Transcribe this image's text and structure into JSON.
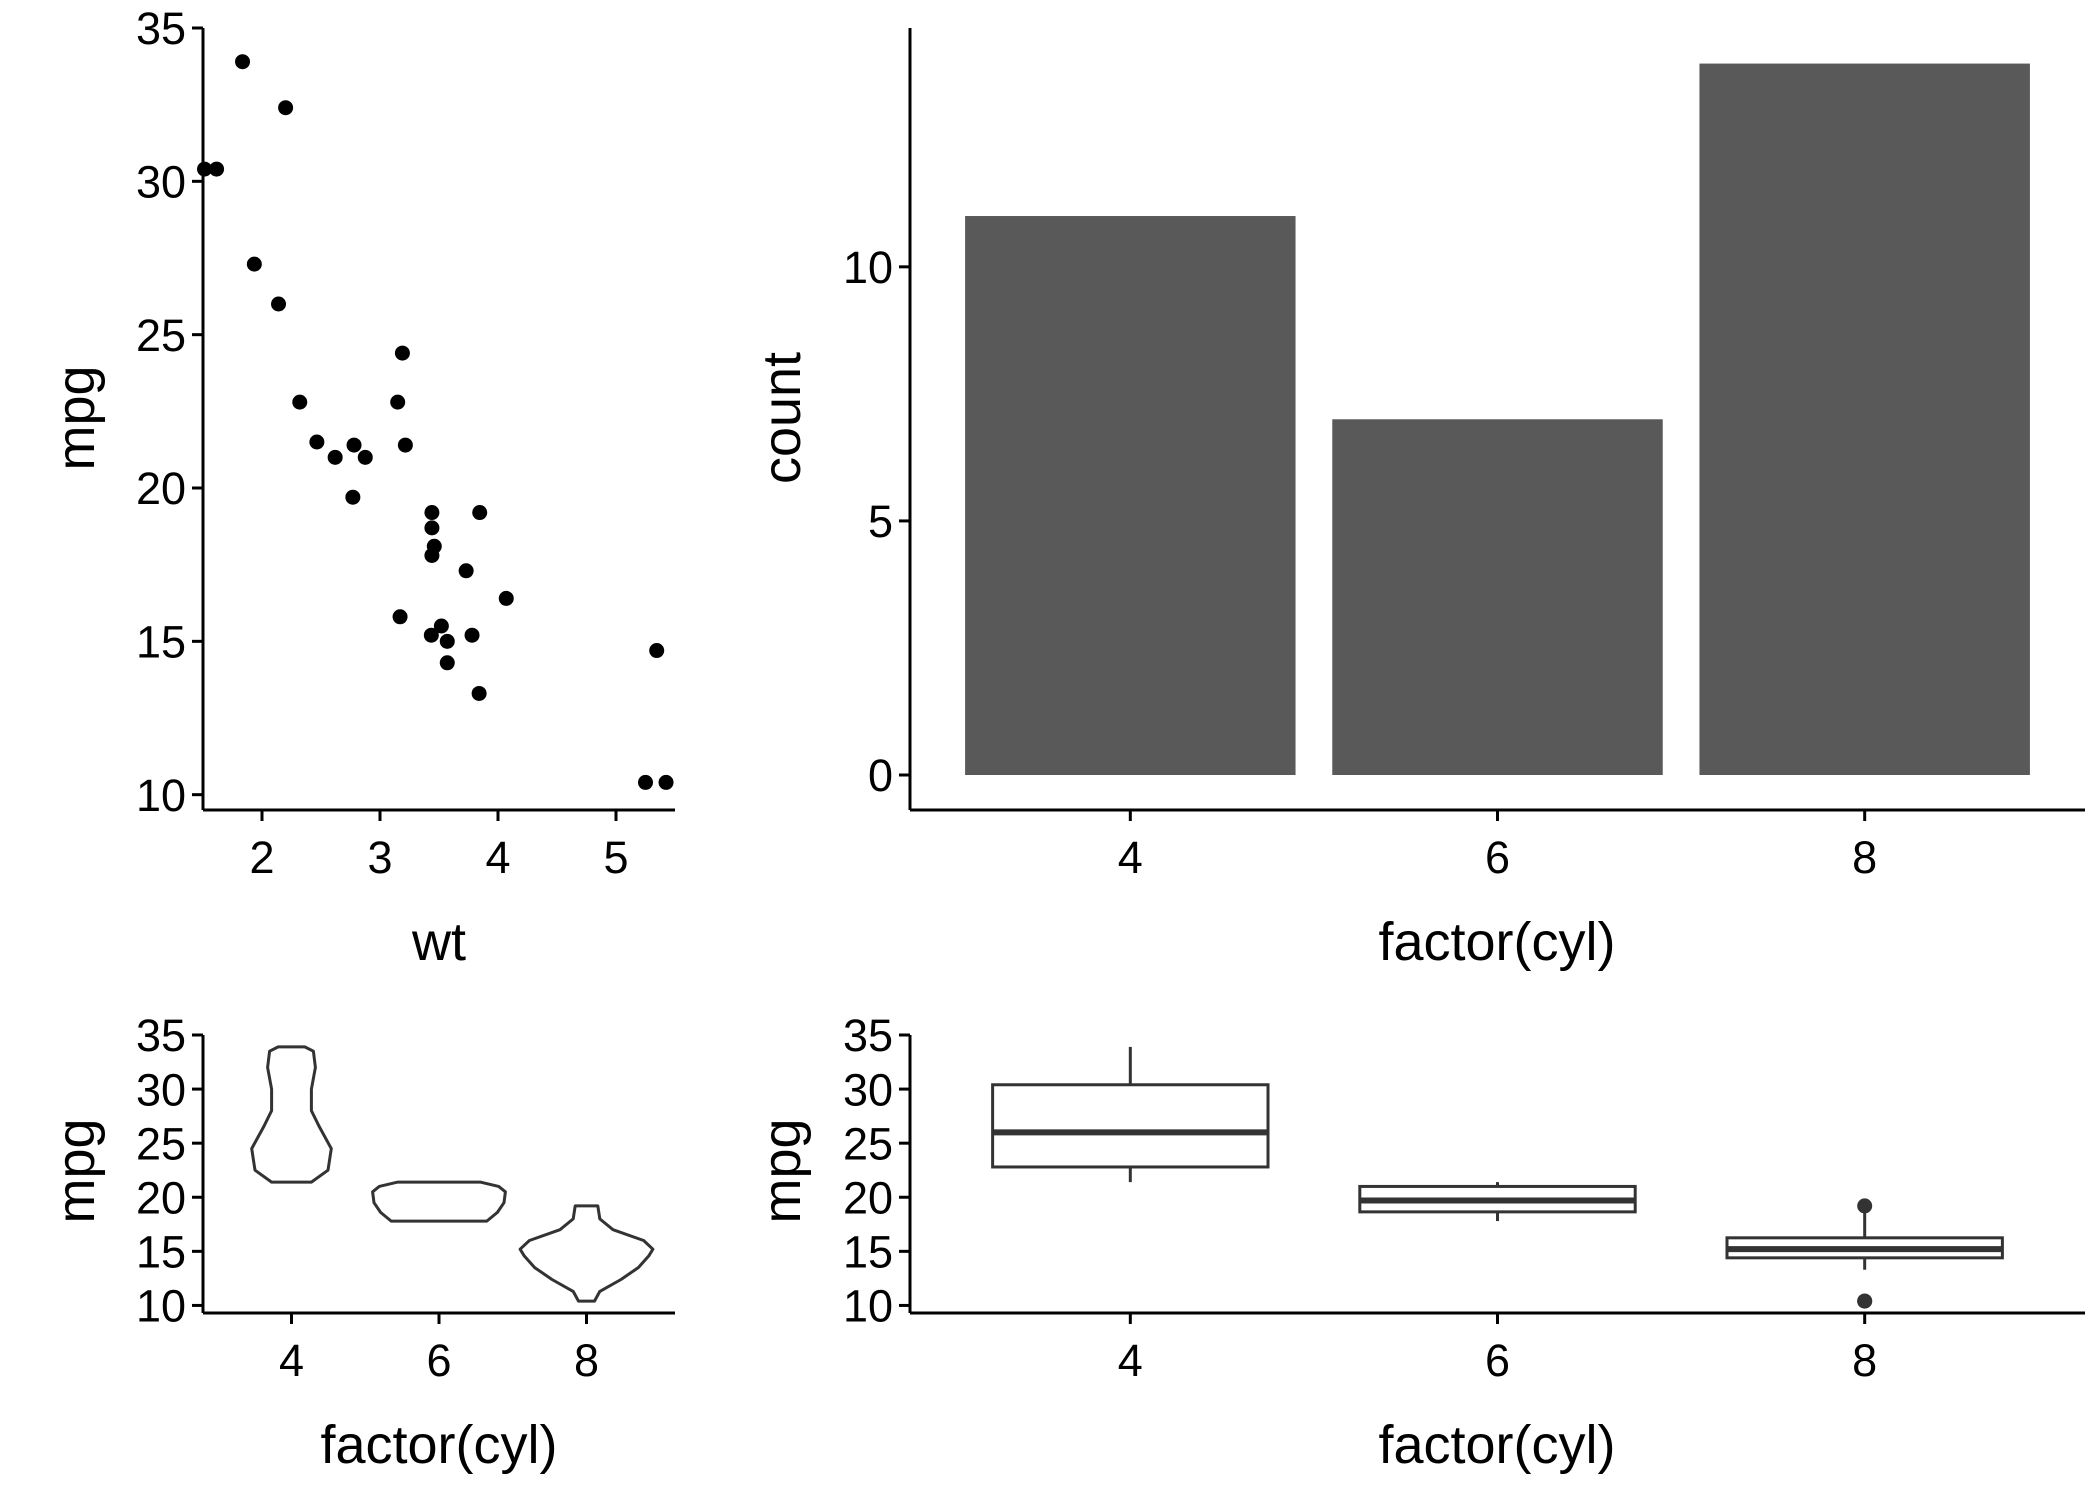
{
  "chart_data": [
    {
      "type": "scatter",
      "xlabel": "wt",
      "ylabel": "mpg",
      "xlim": [
        1.5,
        5.5
      ],
      "ylim": [
        9.5,
        35
      ],
      "x_ticks": [
        2,
        3,
        4,
        5
      ],
      "y_ticks": [
        10,
        15,
        20,
        25,
        30,
        35
      ],
      "point_color": "#000000",
      "points": [
        {
          "x": 2.62,
          "y": 21.0
        },
        {
          "x": 2.875,
          "y": 21.0
        },
        {
          "x": 2.32,
          "y": 22.8
        },
        {
          "x": 3.215,
          "y": 21.4
        },
        {
          "x": 3.44,
          "y": 18.7
        },
        {
          "x": 3.46,
          "y": 18.1
        },
        {
          "x": 3.57,
          "y": 14.3
        },
        {
          "x": 3.19,
          "y": 24.4
        },
        {
          "x": 3.15,
          "y": 22.8
        },
        {
          "x": 3.44,
          "y": 19.2
        },
        {
          "x": 3.44,
          "y": 17.8
        },
        {
          "x": 4.07,
          "y": 16.4
        },
        {
          "x": 3.73,
          "y": 17.3
        },
        {
          "x": 3.78,
          "y": 15.2
        },
        {
          "x": 5.25,
          "y": 10.4
        },
        {
          "x": 5.424,
          "y": 10.4
        },
        {
          "x": 5.345,
          "y": 14.7
        },
        {
          "x": 2.2,
          "y": 32.4
        },
        {
          "x": 1.615,
          "y": 30.4
        },
        {
          "x": 1.835,
          "y": 33.9
        },
        {
          "x": 2.465,
          "y": 21.5
        },
        {
          "x": 3.52,
          "y": 15.5
        },
        {
          "x": 3.435,
          "y": 15.2
        },
        {
          "x": 3.84,
          "y": 13.3
        },
        {
          "x": 3.845,
          "y": 19.2
        },
        {
          "x": 1.935,
          "y": 27.3
        },
        {
          "x": 2.14,
          "y": 26.0
        },
        {
          "x": 1.513,
          "y": 30.4
        },
        {
          "x": 3.17,
          "y": 15.8
        },
        {
          "x": 2.77,
          "y": 19.7
        },
        {
          "x": 3.57,
          "y": 15.0
        },
        {
          "x": 2.78,
          "y": 21.4
        }
      ]
    },
    {
      "type": "bar",
      "xlabel": "factor(cyl)",
      "ylabel": "count",
      "categories": [
        "4",
        "6",
        "8"
      ],
      "values": [
        11,
        7,
        14
      ],
      "ylim": [
        0,
        14.7
      ],
      "y_ticks": [
        0,
        5,
        10
      ],
      "bar_color": "#595959"
    },
    {
      "type": "violin",
      "xlabel": "factor(cyl)",
      "ylabel": "mpg",
      "categories": [
        "4",
        "6",
        "8"
      ],
      "ylim": [
        9.3,
        35
      ],
      "y_ticks": [
        10,
        15,
        20,
        25,
        30,
        35
      ],
      "line_color": "#333333",
      "violins": [
        {
          "category": "4",
          "profile": [
            [
              21.4,
              0.3
            ],
            [
              22.5,
              0.55
            ],
            [
              24.5,
              0.6
            ],
            [
              26.5,
              0.42
            ],
            [
              28,
              0.3
            ],
            [
              30,
              0.3
            ],
            [
              32,
              0.36
            ],
            [
              33.5,
              0.33
            ],
            [
              33.9,
              0.2
            ]
          ]
        },
        {
          "category": "6",
          "profile": [
            [
              17.8,
              0.72
            ],
            [
              18.6,
              0.88
            ],
            [
              19.5,
              0.98
            ],
            [
              20.5,
              1.0
            ],
            [
              21.0,
              0.9
            ],
            [
              21.4,
              0.62
            ]
          ]
        },
        {
          "category": "8",
          "profile": [
            [
              10.4,
              0.12
            ],
            [
              11.3,
              0.2
            ],
            [
              12.4,
              0.52
            ],
            [
              13.5,
              0.78
            ],
            [
              14.6,
              0.94
            ],
            [
              15.2,
              1.0
            ],
            [
              16.0,
              0.86
            ],
            [
              17.0,
              0.4
            ],
            [
              18.0,
              0.2
            ],
            [
              19.2,
              0.17
            ]
          ]
        }
      ]
    },
    {
      "type": "boxplot",
      "xlabel": "factor(cyl)",
      "ylabel": "mpg",
      "categories": [
        "4",
        "6",
        "8"
      ],
      "ylim": [
        9.3,
        35
      ],
      "y_ticks": [
        10,
        15,
        20,
        25,
        30,
        35
      ],
      "line_color": "#333333",
      "boxes": [
        {
          "category": "4",
          "min": 21.4,
          "q1": 22.8,
          "median": 26.0,
          "q3": 30.4,
          "max": 33.9,
          "outliers": []
        },
        {
          "category": "6",
          "min": 17.8,
          "q1": 18.65,
          "median": 19.7,
          "q3": 21.0,
          "max": 21.4,
          "outliers": []
        },
        {
          "category": "8",
          "min": 13.3,
          "q1": 14.4,
          "median": 15.2,
          "q3": 16.25,
          "max": 18.7,
          "outliers": [
            10.4,
            10.4,
            19.2
          ]
        }
      ]
    }
  ]
}
